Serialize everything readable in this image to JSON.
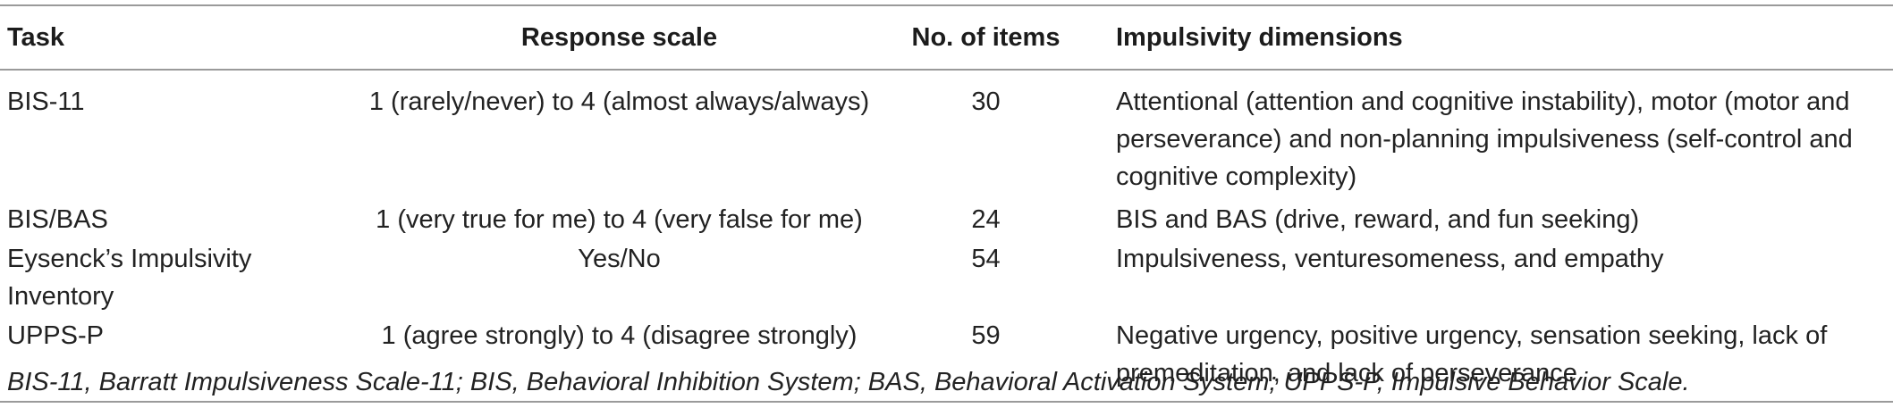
{
  "table": {
    "headers": {
      "task": "Task",
      "response_scale": "Response scale",
      "no_of_items": "No. of items",
      "impulsivity_dimensions": "Impulsivity dimensions"
    },
    "rows": [
      {
        "task": "BIS-11",
        "response_scale": "1 (rarely/never) to 4 (almost always/always)",
        "no_of_items": "30",
        "impulsivity_dimensions": "Attentional (attention and cognitive instability), motor (motor and perseverance) and non-planning impulsiveness (self-control and cognitive complexity)"
      },
      {
        "task": "BIS/BAS",
        "response_scale": "1 (very true for me) to 4 (very false for me)",
        "no_of_items": "24",
        "impulsivity_dimensions": "BIS and BAS (drive, reward, and fun seeking)"
      },
      {
        "task": "Eysenck’s Impulsivity Inventory",
        "response_scale": "Yes/No",
        "no_of_items": "54",
        "impulsivity_dimensions": "Impulsiveness, venturesomeness, and empathy"
      },
      {
        "task": "UPPS-P",
        "response_scale": "1 (agree strongly) to 4 (disagree strongly)",
        "no_of_items": "59",
        "impulsivity_dimensions": "Negative urgency, positive urgency, sensation seeking, lack of premeditation, and lack of perseverance"
      }
    ],
    "footnote": "BIS-11, Barratt Impulsiveness Scale-11; BIS, Behavioral Inhibition System; BAS, Behavioral Activation System; UPPS-P, Impulsive Behavior Scale."
  }
}
